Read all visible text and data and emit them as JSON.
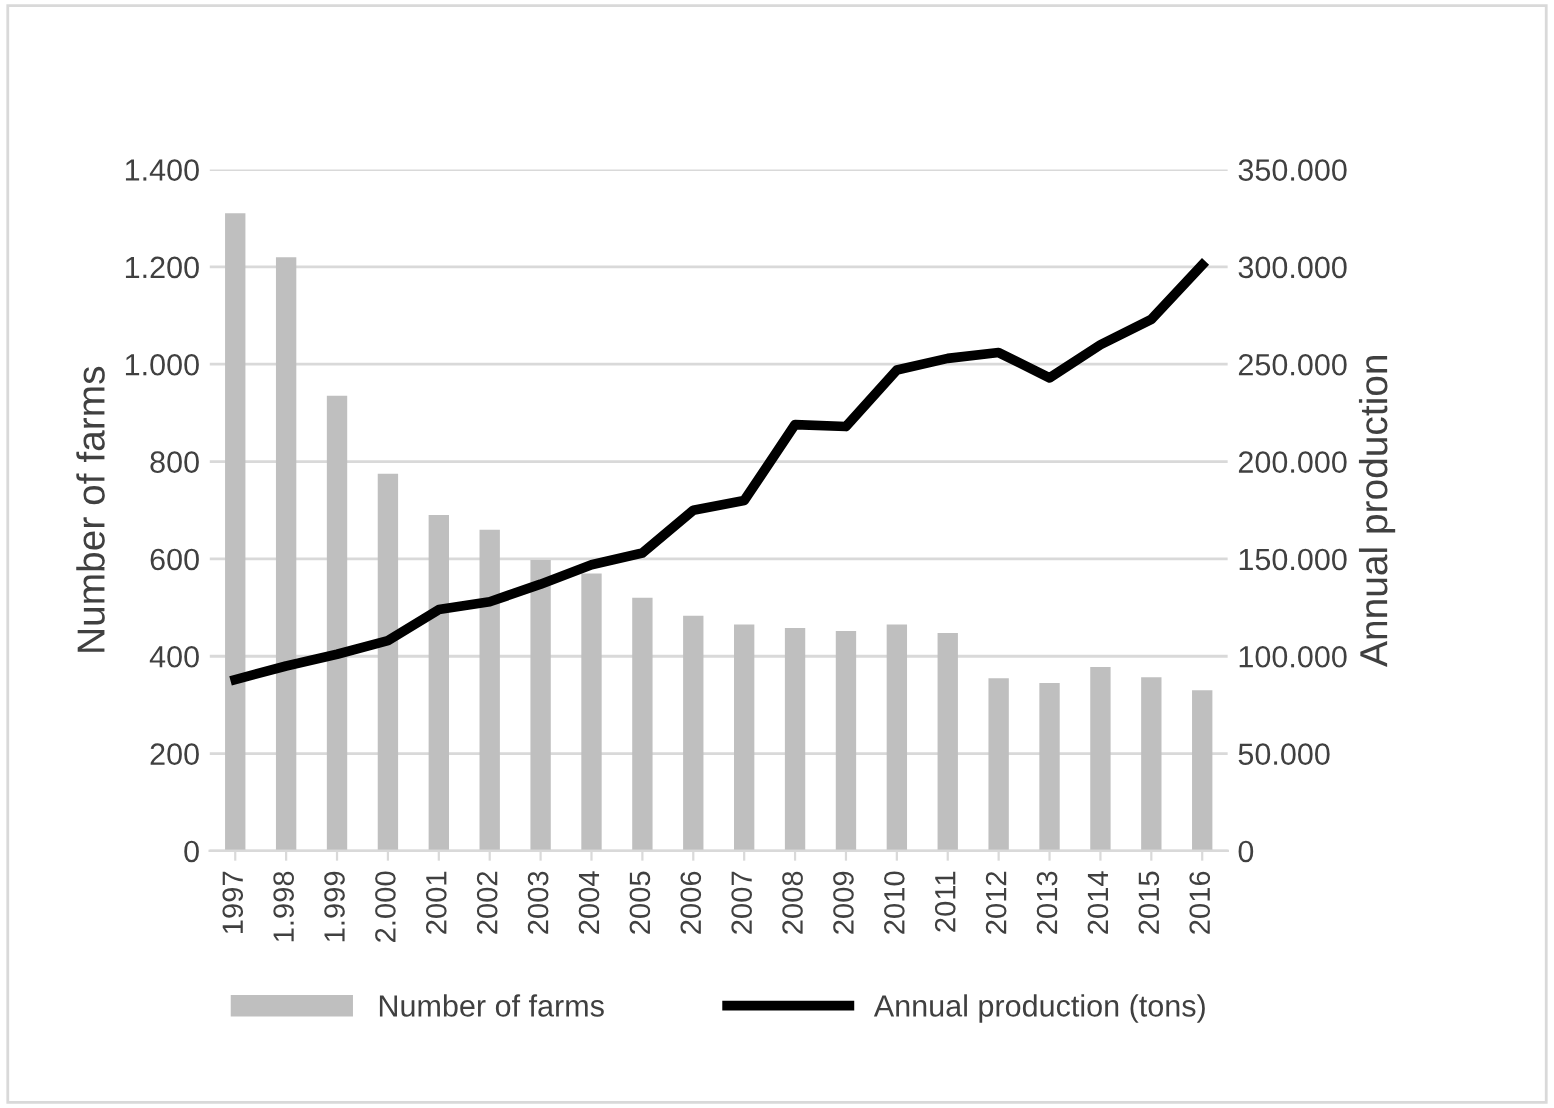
{
  "chart_data": {
    "type": "bar",
    "ylabel": "Number of farms",
    "y2label": "Annual production",
    "categories": [
      "1997",
      "1.998",
      "1.999",
      "2.000",
      "2001",
      "2002",
      "2003",
      "2004",
      "2005",
      "2006",
      "2007",
      "2008",
      "2009",
      "2010",
      "2011",
      "2012",
      "2013",
      "2014",
      "2015",
      "2016"
    ],
    "series": [
      {
        "name": "Number of farms",
        "color": "#bfbfbf",
        "values": [
          1310,
          1220,
          935,
          775,
          690,
          660,
          598,
          570,
          520,
          483,
          465,
          458,
          452,
          465,
          448,
          355,
          345,
          378,
          357,
          330
        ]
      },
      {
        "name": "Annual production (tons)",
        "type": "line",
        "axis": "y2",
        "color": "#000000",
        "marker": "none",
        "line_style": "solid",
        "values": [
          88000,
          95000,
          101000,
          108000,
          124000,
          128000,
          137000,
          147000,
          153000,
          175000,
          180000,
          219000,
          218000,
          247000,
          253000,
          256000,
          243000,
          260000,
          273000,
          301000
        ]
      }
    ],
    "ylim": [
      0,
      1400
    ],
    "yticks": [
      0,
      200,
      400,
      600,
      800,
      {
        "value": 1000,
        "label": "1.000"
      },
      {
        "value": 1200,
        "label": "1.200"
      },
      {
        "value": 1400,
        "label": "1.400"
      }
    ],
    "y2lim": [
      0,
      350000
    ],
    "y2ticks": [
      0,
      {
        "value": 50000,
        "label": "50.000"
      },
      {
        "value": 100000,
        "label": "100.000"
      },
      {
        "value": 150000,
        "label": "150.000"
      },
      {
        "value": 200000,
        "label": "200.000"
      },
      {
        "value": 250000,
        "label": "250.000"
      },
      {
        "value": 300000,
        "label": "300.000"
      },
      {
        "value": 350000,
        "label": "350.000"
      }
    ],
    "grid": "y",
    "legend": "bottom"
  }
}
